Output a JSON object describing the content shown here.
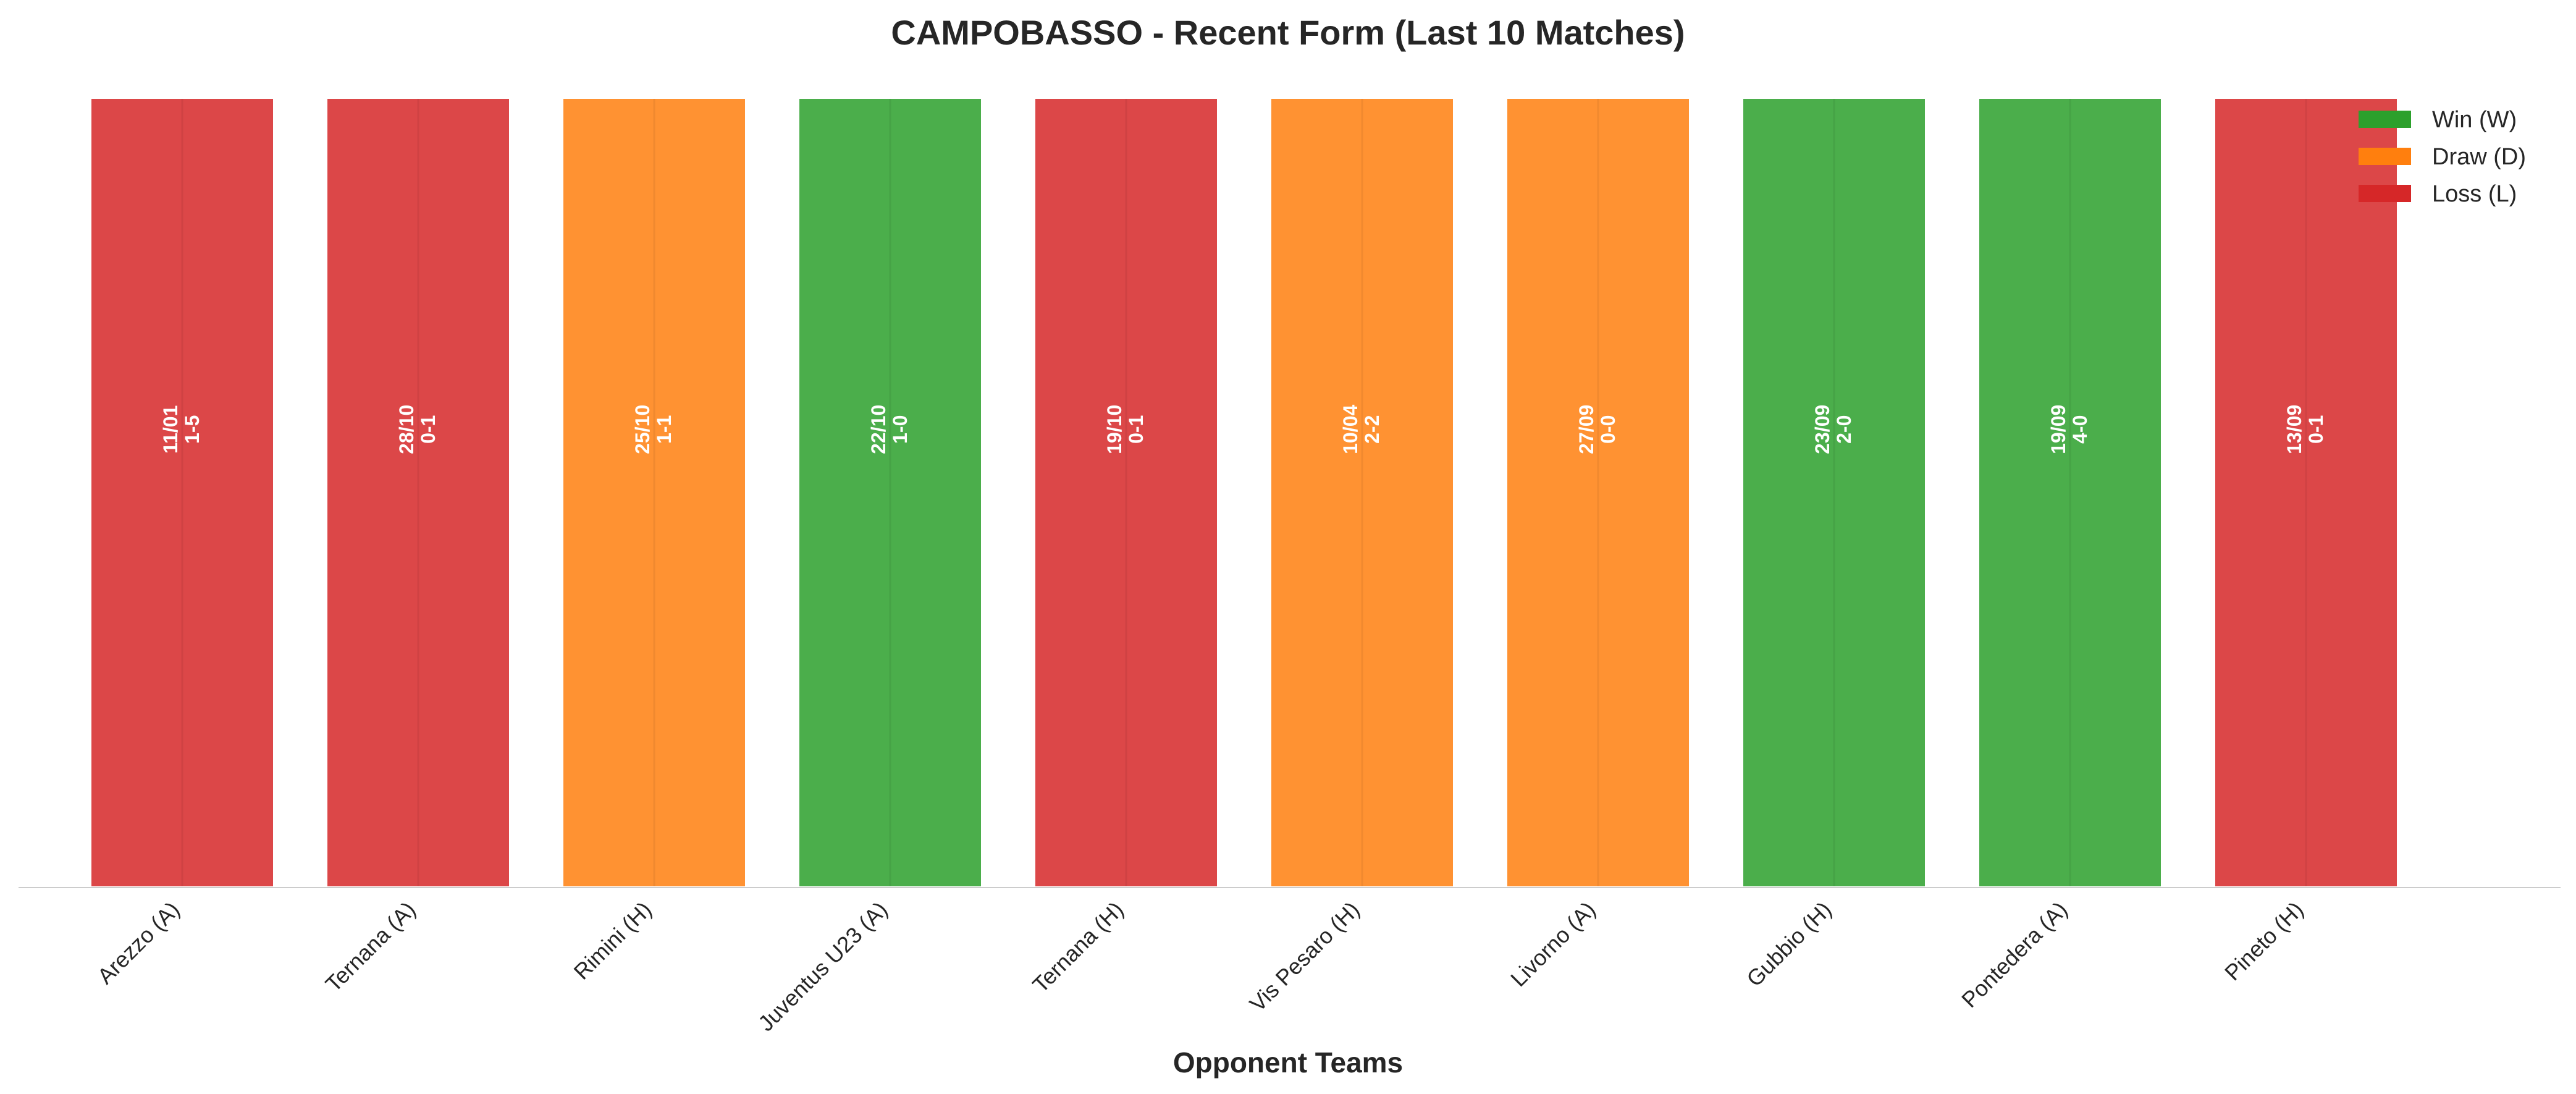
{
  "chart_data": {
    "type": "bar",
    "title": "CAMPOBASSO - Recent Form (Last 10 Matches)",
    "xlabel": "Opponent Teams",
    "ylabel": "",
    "categories": [
      "Arezzo (A)",
      "Ternana (A)",
      "Rimini (H)",
      "Juventus U23 (A)",
      "Ternana (H)",
      "Vis Pesaro (H)",
      "Livorno (A)",
      "Gubbio (H)",
      "Pontedera (A)",
      "Pineto (H)"
    ],
    "values": [
      1,
      1,
      1,
      1,
      1,
      1,
      1,
      1,
      1,
      1
    ],
    "results": [
      "L",
      "L",
      "D",
      "W",
      "L",
      "D",
      "D",
      "W",
      "W",
      "L"
    ],
    "dates": [
      "11/01",
      "28/10",
      "25/10",
      "22/10",
      "19/10",
      "10/04",
      "27/09",
      "23/09",
      "19/09",
      "13/09"
    ],
    "scores": [
      "1-5",
      "0-1",
      "1-1",
      "1-0",
      "0-1",
      "2-2",
      "0-0",
      "2-0",
      "4-0",
      "0-1"
    ],
    "ylim": [
      0,
      1
    ],
    "grid": false,
    "legend_position": "top-right",
    "legend": [
      {
        "key": "W",
        "label": "Win (W)",
        "color": "#2ca02c"
      },
      {
        "key": "D",
        "label": "Draw (D)",
        "color": "#ff7f0e"
      },
      {
        "key": "L",
        "label": "Loss (L)",
        "color": "#d62728"
      }
    ]
  }
}
